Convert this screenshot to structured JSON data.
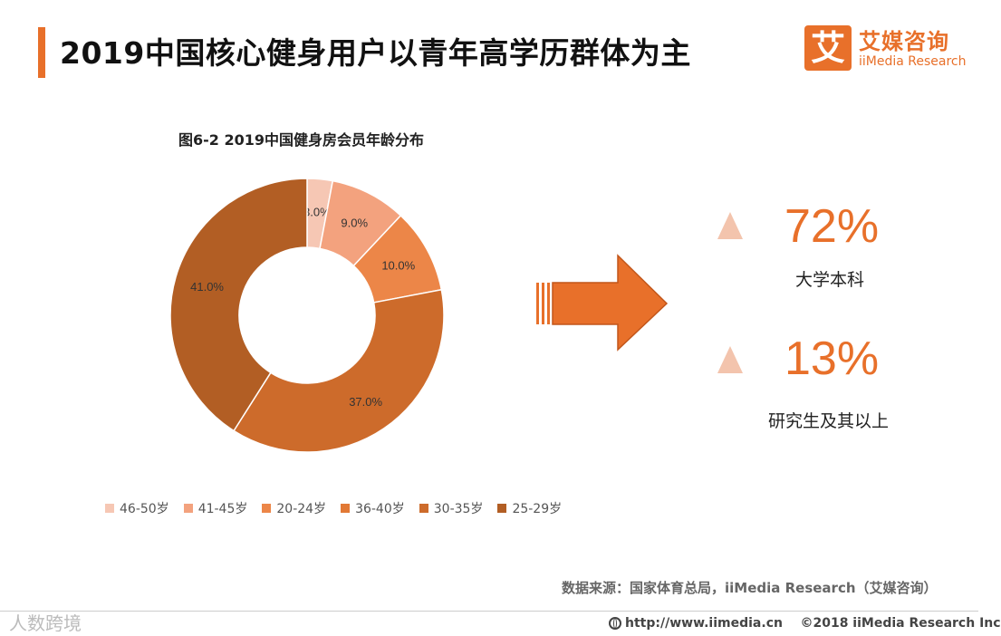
{
  "header": {
    "title": "2019中国核心健身用户以青年高学历群体为主",
    "logo_mark": "艾",
    "logo_cn": "艾媒咨询",
    "logo_en": "iiMedia Research"
  },
  "chart_data": {
    "type": "pie",
    "title": "图6-2 2019中国健身房会员年龄分布",
    "categories": [
      "46-50岁",
      "41-45岁",
      "20-24岁",
      "36-40岁",
      "30-35岁",
      "25-29岁"
    ],
    "values": [
      3.0,
      9.0,
      10.0,
      0,
      37.0,
      41.0
    ],
    "value_labels": [
      "3.0%",
      "9.0%",
      "10.0%",
      "",
      "37.0%",
      "41.0%"
    ],
    "colors": [
      "#f6c7b4",
      "#f3a27e",
      "#ec8648",
      "#e27935",
      "#cd6b2b",
      "#b25e24"
    ],
    "donut": true,
    "legend_position": "bottom"
  },
  "stats": [
    {
      "value": "72%",
      "label": "大学本科"
    },
    {
      "value": "13%",
      "label": "研究生及其以上"
    }
  ],
  "colors": {
    "accent": "#e8702a",
    "triangle": "#f3c4ad"
  },
  "footer": {
    "source": "数据来源：国家体育总局，iiMedia Research（艾媒咨询）",
    "watermark": "人数跨境",
    "website": "http://www.iimedia.cn",
    "copyright": "©2018  iiMedia Research  Inc"
  }
}
